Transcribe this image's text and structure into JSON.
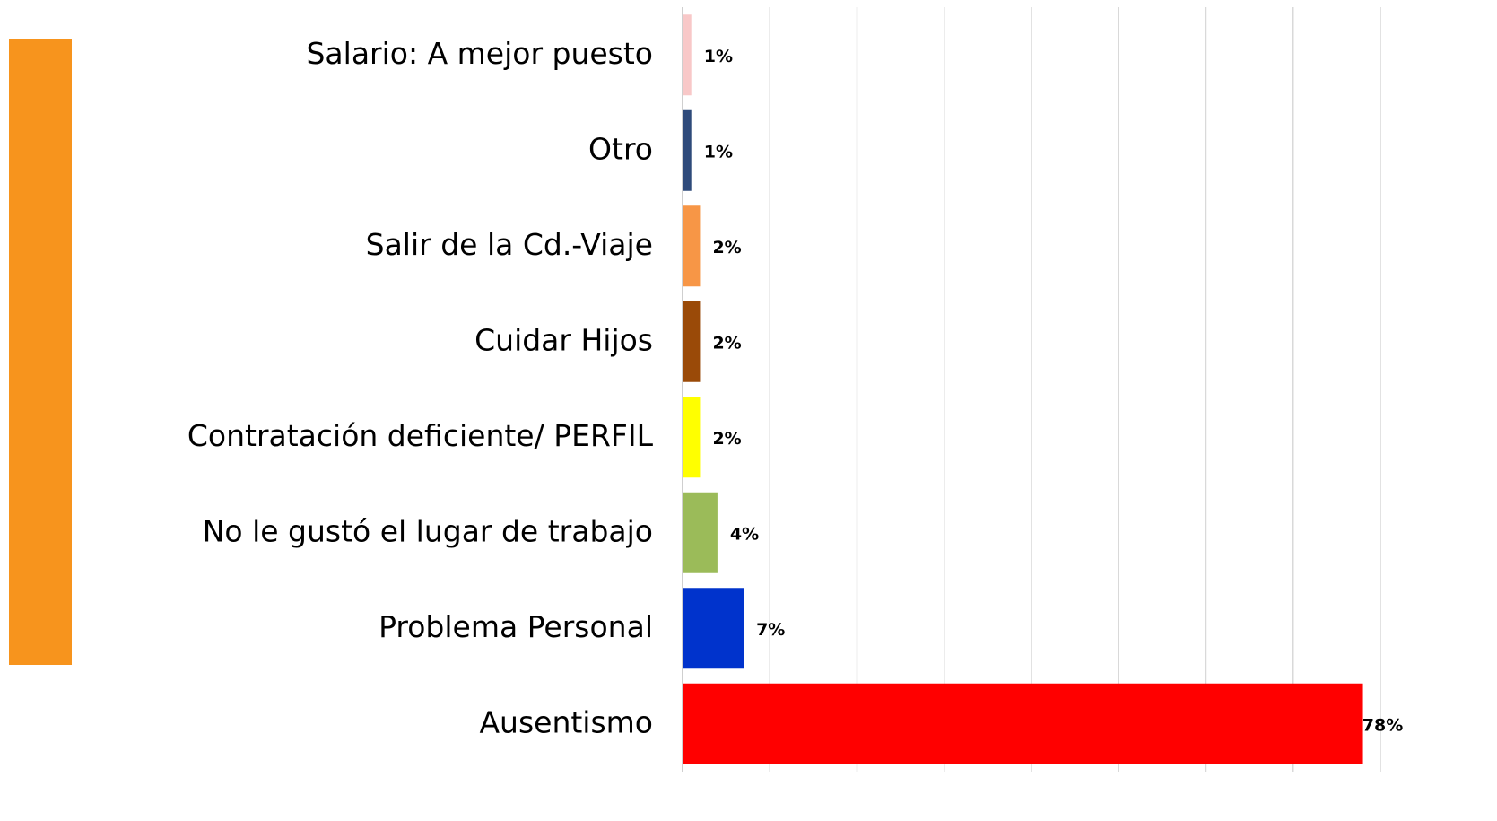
{
  "chart_data": {
    "type": "barh",
    "categories": [
      "Salario: A mejor puesto",
      "Otro",
      "Salir de la Cd.-Viaje",
      "Cuidar Hijos",
      "Contratación deficiente/ PERFIL",
      "No le gustó el lugar de trabajo",
      "Problema Personal",
      "Ausentismo"
    ],
    "values": [
      1,
      1,
      2,
      2,
      2,
      4,
      7,
      78
    ],
    "value_labels": [
      "1%",
      "1%",
      "2%",
      "2%",
      "2%",
      "4%",
      "7%",
      "78%"
    ],
    "colors": [
      "#f8c8c8",
      "#2e4a7a",
      "#f79646",
      "#9a4a08",
      "#ffff00",
      "#9bbb59",
      "#0033cc",
      "#ff0000"
    ],
    "xlim": [
      0,
      80
    ],
    "xticks": [
      0,
      10,
      20,
      30,
      40,
      50,
      60,
      70,
      80
    ],
    "grid": true
  }
}
